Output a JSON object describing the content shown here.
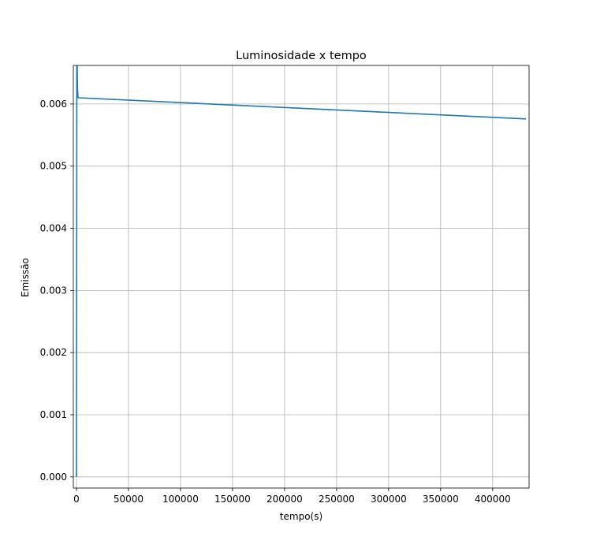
{
  "chart_data": {
    "type": "line",
    "title": "Luminosidade x tempo",
    "xlabel": "tempo(s)",
    "ylabel": "Emissão",
    "xlim": [
      -3000,
      435000
    ],
    "ylim": [
      -0.00018,
      0.00662
    ],
    "xticks": [
      0,
      50000,
      100000,
      150000,
      200000,
      250000,
      300000,
      350000,
      400000
    ],
    "xtick_labels": [
      "0",
      "50000",
      "100000",
      "150000",
      "200000",
      "250000",
      "300000",
      "350000",
      "400000"
    ],
    "yticks": [
      0.0,
      0.001,
      0.002,
      0.003,
      0.004,
      0.005,
      0.006
    ],
    "ytick_labels": [
      "0.000",
      "0.001",
      "0.002",
      "0.003",
      "0.004",
      "0.005",
      "0.006"
    ],
    "grid": true,
    "series": [
      {
        "color": "#1f77b4",
        "x": [
          0,
          400,
          700,
          1000,
          1500,
          2000,
          432000
        ],
        "y": [
          0.0,
          0.0069,
          0.0066,
          0.00625,
          0.0061,
          0.0061,
          0.00576
        ]
      }
    ]
  }
}
